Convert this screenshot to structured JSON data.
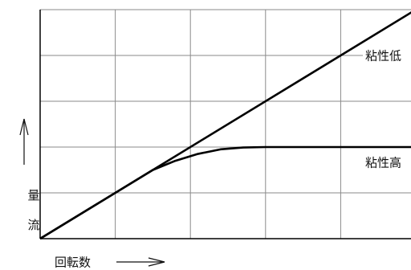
{
  "chart_data": {
    "type": "line",
    "x_label": "回転数",
    "y_label": "流量",
    "xlim": [
      0,
      5
    ],
    "ylim": [
      0,
      5
    ],
    "xticks": [
      0,
      1,
      2,
      3,
      4,
      5
    ],
    "yticks": [
      0,
      1,
      2,
      3,
      4,
      5
    ],
    "grid": true,
    "series": [
      {
        "name": "粘性低",
        "color": "#000000",
        "x": [
          0,
          5
        ],
        "values": [
          0,
          5
        ]
      },
      {
        "name": "粘性高",
        "color": "#000000",
        "x": [
          0,
          1.5,
          1.8,
          2.1,
          2.4,
          2.7,
          3,
          5
        ],
        "values": [
          0,
          1.5,
          1.7,
          1.85,
          1.95,
          1.99,
          2,
          2
        ]
      }
    ]
  }
}
